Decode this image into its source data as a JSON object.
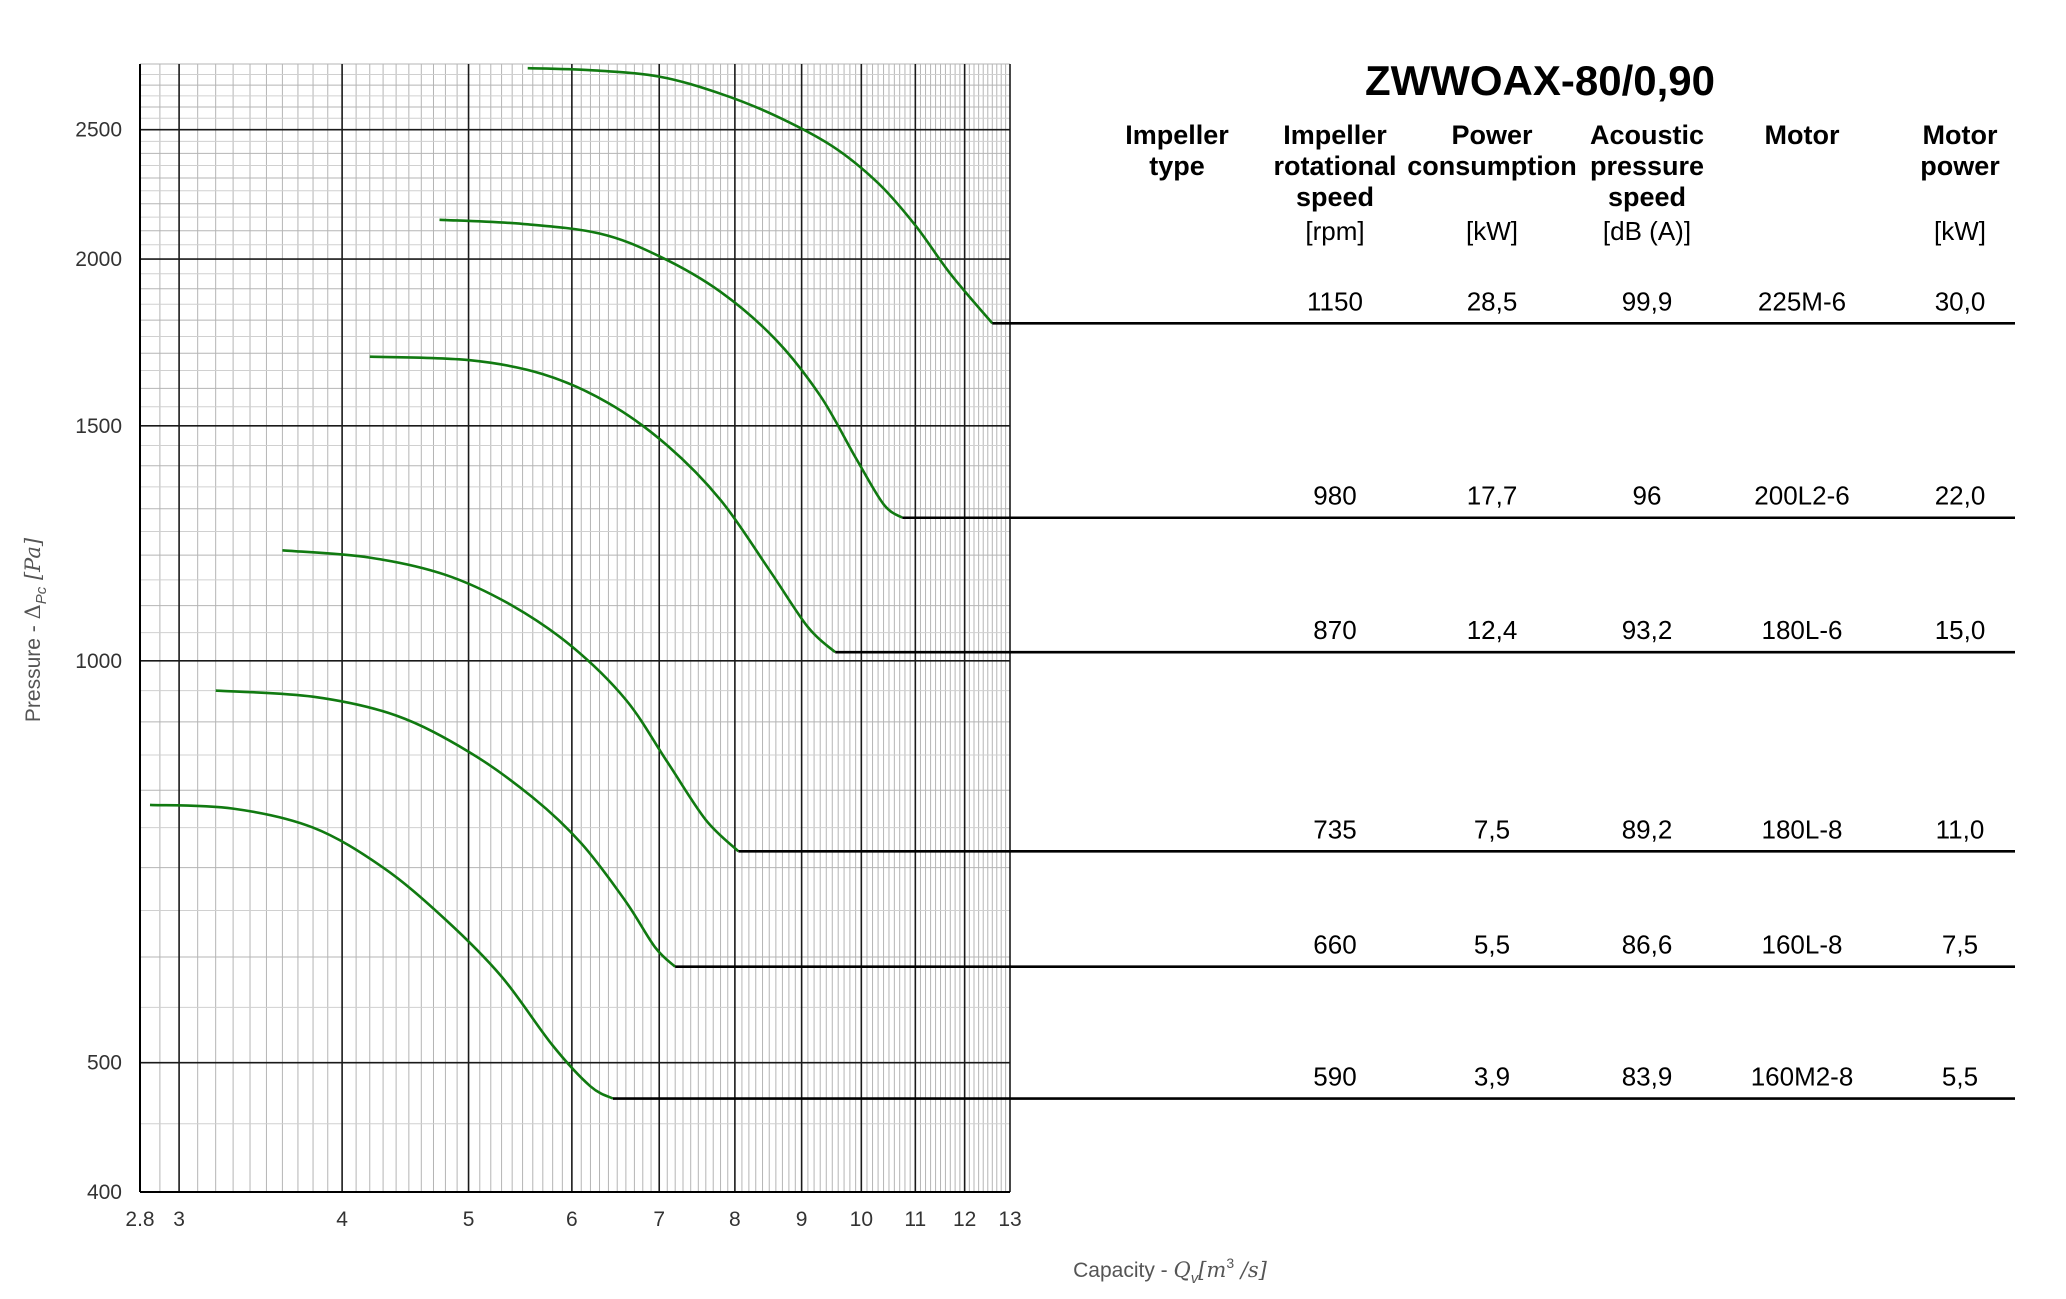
{
  "chart_data": {
    "type": "line",
    "title": "ZWWOAX-80/0,90",
    "x_scale": "log",
    "y_scale": "log",
    "xlim": [
      2.8,
      13
    ],
    "ylim": [
      400,
      2800
    ],
    "x_ticks": [
      "2.8",
      "3",
      "4",
      "5",
      "6",
      "7",
      "8",
      "9",
      "10",
      "11",
      "12",
      "13"
    ],
    "y_ticks": [
      "400",
      "500",
      "1000",
      "1500",
      "2000",
      "2500"
    ],
    "xlabel": {
      "prefix": "Capacity - ",
      "symbol": "Q",
      "sub": "v",
      "unit": "[m",
      "sup": "3",
      "unit_end": " /s]"
    },
    "ylabel": {
      "prefix": "Pressure - ",
      "symbol": "Δ",
      "sub": "Pc",
      "unit": " [Pa]"
    },
    "grid": true,
    "line_color": "#117a11",
    "series": [
      {
        "x": [
          5.55,
          6.2,
          7.0,
          7.8,
          8.6,
          9.5,
          10.3,
          11.0,
          11.7,
          12.6
        ],
        "y": [
          2780,
          2770,
          2740,
          2660,
          2560,
          2430,
          2280,
          2120,
          1950,
          1790
        ]
      },
      {
        "x": [
          4.75,
          5.5,
          6.3,
          7.0,
          7.8,
          8.6,
          9.3,
          9.9,
          10.4,
          10.75
        ],
        "y": [
          2140,
          2125,
          2090,
          2010,
          1890,
          1740,
          1580,
          1420,
          1310,
          1280
        ]
      },
      {
        "x": [
          4.2,
          5.0,
          5.7,
          6.4,
          7.1,
          7.8,
          8.5,
          9.1,
          9.55
        ],
        "y": [
          1690,
          1680,
          1640,
          1560,
          1450,
          1320,
          1170,
          1060,
          1015
        ]
      },
      {
        "x": [
          3.6,
          4.2,
          4.8,
          5.4,
          6.0,
          6.6,
          7.1,
          7.6,
          8.05
        ],
        "y": [
          1210,
          1195,
          1160,
          1100,
          1025,
          935,
          840,
          760,
          720
        ]
      },
      {
        "x": [
          3.2,
          3.8,
          4.4,
          5.0,
          5.6,
          6.1,
          6.6,
          6.95,
          7.2
        ],
        "y": [
          950,
          940,
          910,
          855,
          790,
          730,
          660,
          610,
          590
        ]
      },
      {
        "x": [
          2.85,
          3.3,
          3.8,
          4.3,
          4.8,
          5.3,
          5.8,
          6.2,
          6.45
        ],
        "y": [
          780,
          775,
          750,
          700,
          640,
          580,
          515,
          480,
          470
        ]
      }
    ]
  },
  "table": {
    "headers": [
      {
        "lines": [
          "Impeller",
          "type"
        ],
        "unit": ""
      },
      {
        "lines": [
          "Impeller",
          "rotational",
          "speed"
        ],
        "unit": "[rpm]"
      },
      {
        "lines": [
          "Power",
          "consumption"
        ],
        "unit": "[kW]"
      },
      {
        "lines": [
          "Acoustic",
          "pressure",
          "speed"
        ],
        "unit": "[dB (A)]"
      },
      {
        "lines": [
          "Motor"
        ],
        "unit": ""
      },
      {
        "lines": [
          "Motor",
          "power"
        ],
        "unit": "[kW]"
      }
    ],
    "rows": [
      {
        "speed": "1150",
        "power": "28,5",
        "acoustic": "99,9",
        "motor": "225M-6",
        "motor_power": "30,0"
      },
      {
        "speed": "980",
        "power": "17,7",
        "acoustic": "96",
        "motor": "200L2-6",
        "motor_power": "22,0"
      },
      {
        "speed": "870",
        "power": "12,4",
        "acoustic": "93,2",
        "motor": "180L-6",
        "motor_power": "15,0"
      },
      {
        "speed": "735",
        "power": "7,5",
        "acoustic": "89,2",
        "motor": "180L-8",
        "motor_power": "11,0"
      },
      {
        "speed": "660",
        "power": "5,5",
        "acoustic": "86,6",
        "motor": "160L-8",
        "motor_power": "7,5"
      },
      {
        "speed": "590",
        "power": "3,9",
        "acoustic": "83,9",
        "motor": "160M2-8",
        "motor_power": "5,5"
      }
    ]
  }
}
